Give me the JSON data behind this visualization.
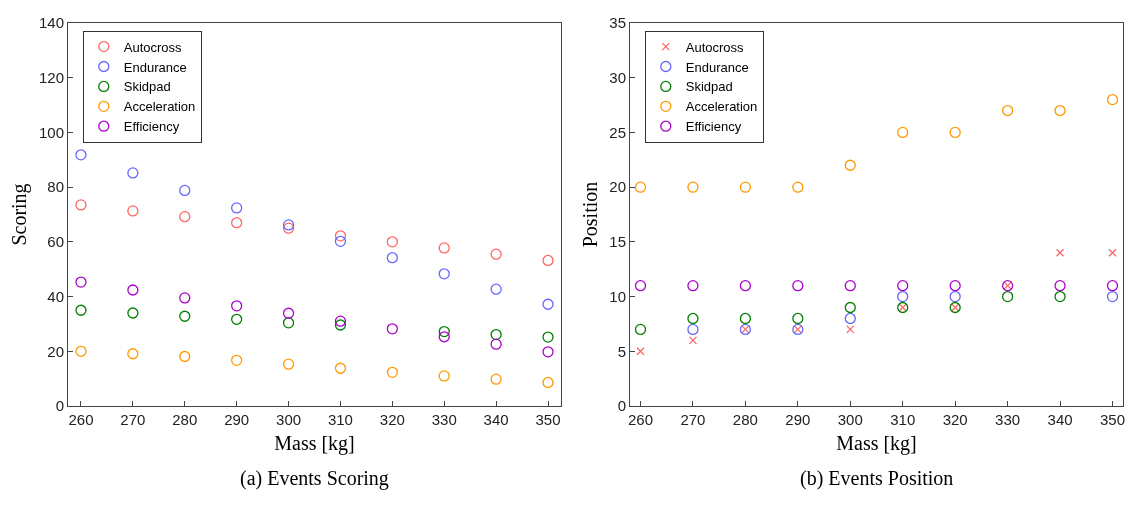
{
  "chart_data": [
    {
      "type": "scatter",
      "xlabel": "Mass [kg]",
      "ylabel": "Scoring",
      "annotations": [
        "(a) Events Scoring"
      ],
      "x": [
        260,
        270,
        280,
        290,
        300,
        310,
        320,
        330,
        340,
        350
      ],
      "xlim": [
        257.5,
        352.5
      ],
      "xticks": [
        260,
        270,
        280,
        290,
        300,
        310,
        320,
        330,
        340,
        350
      ],
      "ylim": [
        0,
        140
      ],
      "yticks": [
        0,
        20,
        40,
        60,
        80,
        100,
        120,
        140
      ],
      "grid": false,
      "legend": "top left",
      "marker": "circle",
      "series": [
        {
          "name": "Autocross",
          "color": "#ff6666",
          "values": [
            73.5,
            71.3,
            69.2,
            67,
            65,
            62.2,
            60,
            57.8,
            55.5,
            53.2
          ]
        },
        {
          "name": "Endurance",
          "color": "#6666ff",
          "values": [
            91.8,
            85.2,
            78.8,
            72.4,
            66.2,
            60.2,
            54.2,
            48.3,
            42.7,
            37.2
          ]
        },
        {
          "name": "Skidpad",
          "color": "#008000",
          "values": [
            35,
            34,
            32.8,
            31.7,
            30.4,
            29.6,
            null,
            27.2,
            26.1,
            25.2
          ]
        },
        {
          "name": "Acceleration",
          "color": "#ff9900",
          "values": [
            20,
            19.1,
            18.1,
            16.7,
            15.3,
            13.8,
            12.3,
            11,
            9.8,
            8.6
          ]
        },
        {
          "name": "Efficiency",
          "color": "#aa00cc",
          "values": [
            45.3,
            42.4,
            39.5,
            36.6,
            33.9,
            31,
            28.2,
            25.3,
            22.6,
            19.8
          ]
        }
      ]
    },
    {
      "type": "scatter",
      "xlabel": "Mass [kg]",
      "ylabel": "Position",
      "annotations": [
        "(b) Events Position"
      ],
      "x": [
        260,
        270,
        280,
        290,
        300,
        310,
        320,
        330,
        340,
        350
      ],
      "xlim": [
        258,
        352
      ],
      "xticks": [
        260,
        270,
        280,
        290,
        300,
        310,
        320,
        330,
        340,
        350
      ],
      "ylim": [
        0,
        35
      ],
      "yticks": [
        0,
        5,
        10,
        15,
        20,
        25,
        30,
        35
      ],
      "grid": false,
      "legend": "top left",
      "marker": "circle",
      "series": [
        {
          "name": "Autocross",
          "color": "#ff6666",
          "marker": "cross",
          "values": [
            5,
            6,
            7,
            7,
            7,
            9,
            9,
            11,
            14,
            14
          ]
        },
        {
          "name": "Endurance",
          "color": "#6666ff",
          "values": [
            null,
            7,
            7,
            7,
            8,
            10,
            10,
            null,
            null,
            10
          ]
        },
        {
          "name": "Skidpad",
          "color": "#008000",
          "values": [
            7,
            8,
            8,
            8,
            9,
            9,
            9,
            10,
            10,
            null
          ]
        },
        {
          "name": "Acceleration",
          "color": "#ff9900",
          "values": [
            20,
            20,
            20,
            20,
            22,
            25,
            25,
            27,
            27,
            28
          ]
        },
        {
          "name": "Efficiency",
          "color": "#aa00cc",
          "values": [
            11,
            11,
            11,
            11,
            11,
            11,
            11,
            11,
            11,
            11
          ]
        }
      ]
    }
  ]
}
